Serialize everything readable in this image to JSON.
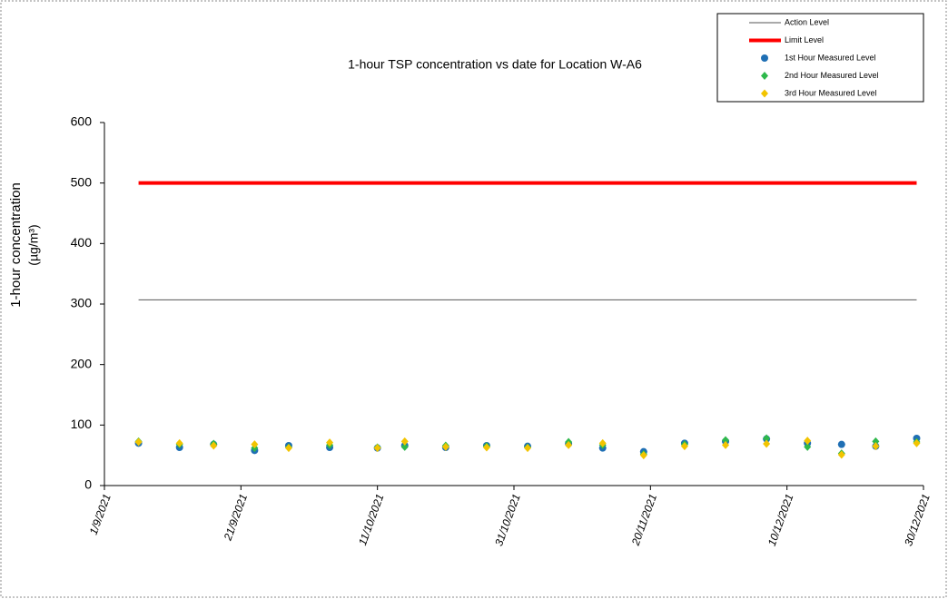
{
  "chart_data": {
    "type": "scatter",
    "title": "1-hour TSP concentration vs date for Location  W-A6",
    "y_label": [
      "1-hour concentration",
      "(µg/m³)"
    ],
    "xlim": [
      "2021-09-01",
      "2021-12-30"
    ],
    "xticks": [
      {
        "value": "2021-09-01",
        "label": "1/9/2021"
      },
      {
        "value": "2021-09-21",
        "label": "21/9/2021"
      },
      {
        "value": "2021-10-11",
        "label": "11/10/2021"
      },
      {
        "value": "2021-10-31",
        "label": "31/10/2021"
      },
      {
        "value": "2021-11-20",
        "label": "20/11/2021"
      },
      {
        "value": "2021-12-10",
        "label": "10/12/2021"
      },
      {
        "value": "2021-12-30",
        "label": "30/12/2021"
      }
    ],
    "ylim": [
      0,
      600
    ],
    "yticks": [
      0,
      100,
      200,
      300,
      400,
      500,
      600
    ],
    "series": [
      {
        "name": "Action Level",
        "color": "#555555",
        "style": "line",
        "width": 1,
        "x": [
          "2021-09-06",
          "2021-12-29"
        ],
        "values": [
          307,
          307
        ]
      },
      {
        "name": "Limit Level",
        "color": "#ff0000",
        "style": "line",
        "width": 4,
        "x": [
          "2021-09-06",
          "2021-12-29"
        ],
        "values": [
          500,
          500
        ]
      },
      {
        "name": "1st Hour Measured Level",
        "color": "#1f6fb4",
        "style": "circle",
        "x": [
          "2021-09-06",
          "2021-09-12",
          "2021-09-17",
          "2021-09-23",
          "2021-09-28",
          "2021-10-04",
          "2021-10-11",
          "2021-10-15",
          "2021-10-21",
          "2021-10-27",
          "2021-11-02",
          "2021-11-08",
          "2021-11-13",
          "2021-11-19",
          "2021-11-25",
          "2021-12-01",
          "2021-12-07",
          "2021-12-13",
          "2021-12-18",
          "2021-12-23",
          "2021-12-29"
        ],
        "values": [
          70,
          63,
          68,
          58,
          66,
          63,
          62,
          66,
          63,
          66,
          65,
          69,
          62,
          56,
          70,
          73,
          77,
          70,
          68,
          65,
          78
        ]
      },
      {
        "name": "2nd Hour Measured Level",
        "color": "#2eb84b",
        "style": "diamond",
        "x": [
          "2021-09-06",
          "2021-09-12",
          "2021-09-17",
          "2021-09-23",
          "2021-09-28",
          "2021-10-04",
          "2021-10-11",
          "2021-10-15",
          "2021-10-21",
          "2021-10-27",
          "2021-11-02",
          "2021-11-08",
          "2021-11-13",
          "2021-11-19",
          "2021-11-25",
          "2021-12-01",
          "2021-12-07",
          "2021-12-13",
          "2021-12-18",
          "2021-12-23",
          "2021-12-29"
        ],
        "values": [
          73,
          68,
          69,
          62,
          63,
          67,
          63,
          64,
          66,
          65,
          63,
          72,
          67,
          52,
          68,
          75,
          78,
          64,
          53,
          73,
          72
        ]
      },
      {
        "name": "3rd Hour Measured Level",
        "color": "#f2c400",
        "style": "diamond",
        "x": [
          "2021-09-06",
          "2021-09-12",
          "2021-09-17",
          "2021-09-23",
          "2021-09-28",
          "2021-10-04",
          "2021-10-11",
          "2021-10-15",
          "2021-10-21",
          "2021-10-27",
          "2021-11-02",
          "2021-11-08",
          "2021-11-13",
          "2021-11-19",
          "2021-11-25",
          "2021-12-01",
          "2021-12-07",
          "2021-12-13",
          "2021-12-18",
          "2021-12-23",
          "2021-12-29"
        ],
        "values": [
          72,
          70,
          66,
          68,
          62,
          71,
          62,
          73,
          64,
          63,
          62,
          67,
          70,
          50,
          65,
          67,
          69,
          74,
          51,
          65,
          70
        ]
      }
    ]
  }
}
